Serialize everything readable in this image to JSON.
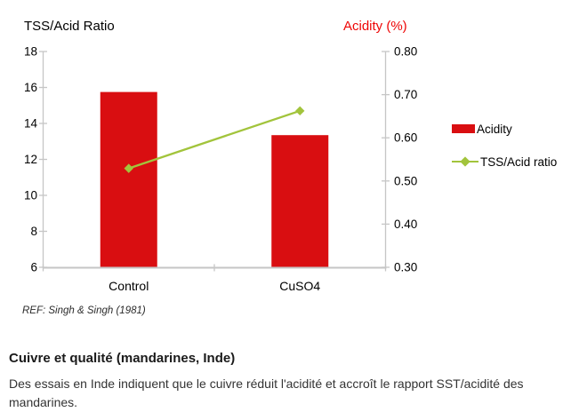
{
  "chart": {
    "left_axis_title": "TSS/Acid Ratio",
    "right_axis_title": "Acidity (%)",
    "left_tick_labels": [
      "18",
      "16",
      "14",
      "12",
      "10",
      "8",
      "6"
    ],
    "right_tick_labels": [
      "0.80",
      "0.70",
      "0.60",
      "0.50",
      "0.40",
      "0.30"
    ],
    "category_labels": [
      "Control",
      "CuSO4"
    ],
    "legend": [
      {
        "label": "Acidity",
        "type": "bar"
      },
      {
        "label": "TSS/Acid ratio",
        "type": "line"
      }
    ],
    "ref_note": "REF: Singh & Singh (1981)",
    "colors": {
      "bar": "#d90e11",
      "line": "#a2c43c",
      "title_red": "#ee0505",
      "axis": "#c6c6c6",
      "tick_text": "#000000"
    }
  },
  "chart_data": {
    "type": "bar",
    "categories": [
      "Control",
      "CuSO4"
    ],
    "series": [
      {
        "name": "Acidity",
        "type": "bar",
        "axis": "right",
        "values": [
          0.7,
          0.6
        ]
      },
      {
        "name": "TSS/Acid ratio",
        "type": "line",
        "axis": "left",
        "values": [
          11.5,
          14.7
        ]
      }
    ],
    "left_axis": {
      "title": "TSS/Acid Ratio",
      "range": [
        6,
        18
      ],
      "tick_step": 2
    },
    "right_axis": {
      "title": "Acidity (%)",
      "range": [
        0.3,
        0.8
      ],
      "tick_step": 0.1
    },
    "grid": false,
    "legend_position": "right"
  },
  "caption": {
    "heading": "Cuivre et qualité (mandarines, Inde)",
    "body": "Des essais en Inde indiquent que le cuivre réduit l'acidité et accroît le rapport SST/acidité des mandarines."
  }
}
